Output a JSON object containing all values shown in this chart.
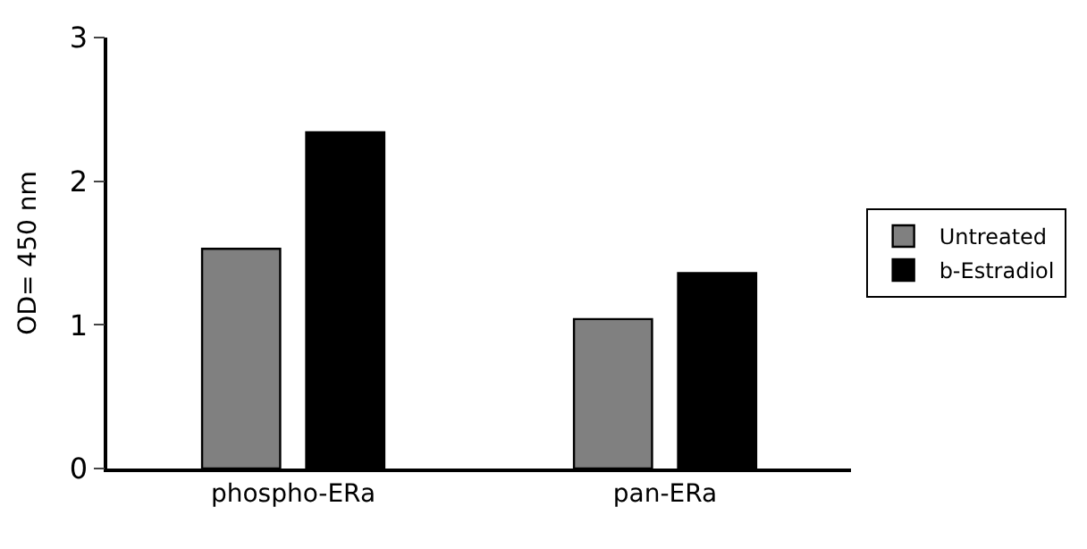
{
  "chart_data": {
    "type": "bar",
    "ylabel": "OD= 450 nm",
    "categories": [
      "phospho-ERa",
      "pan-ERa"
    ],
    "series": [
      {
        "name": "Untreated",
        "color": "#808080",
        "values": [
          1.53,
          1.04
        ]
      },
      {
        "name": "b-Estradiol",
        "color": "#000000",
        "values": [
          2.34,
          1.36
        ]
      }
    ],
    "ylim": [
      0,
      3
    ],
    "yticks": [
      0,
      1,
      2,
      3
    ],
    "legend": "right"
  }
}
